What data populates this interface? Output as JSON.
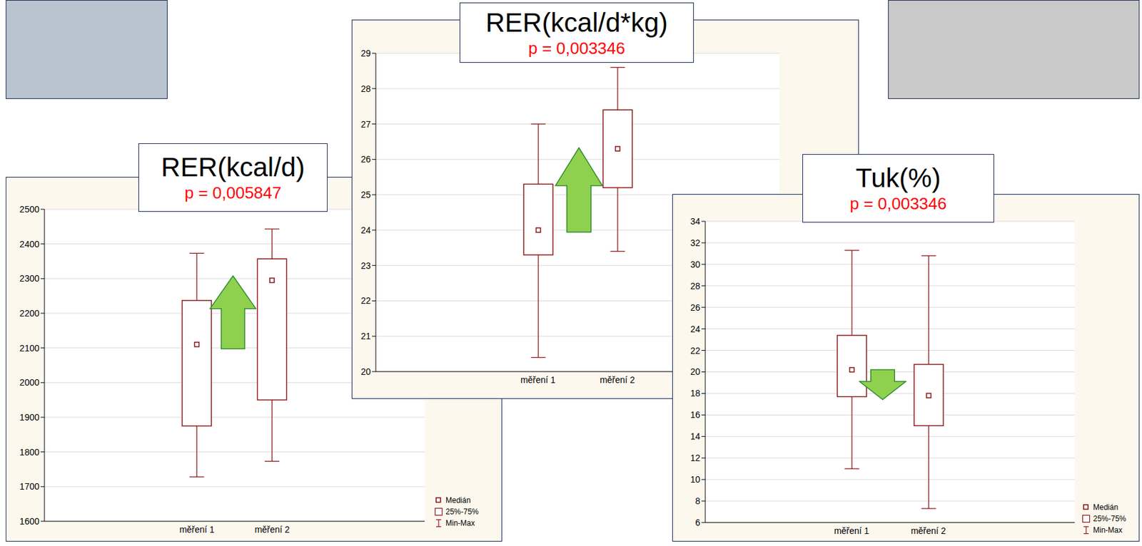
{
  "chart_data": [
    {
      "type": "box",
      "title": "RER(kcal/d)",
      "subtitle": "p = 0,005847",
      "categories": [
        "měření 1",
        "měření 2"
      ],
      "boxes": [
        {
          "min": 1728,
          "q1": 1875,
          "median": 2110,
          "q3": 2237,
          "max": 2373
        },
        {
          "min": 1773,
          "q1": 1950,
          "median": 2295,
          "q3": 2357,
          "max": 2443
        }
      ],
      "color": "#8b1a1a",
      "ylim": [
        1600,
        2500
      ],
      "yticks": [
        1600,
        1700,
        1800,
        1900,
        2000,
        2100,
        2200,
        2300,
        2400,
        2500
      ],
      "grid": true,
      "legend": "lower right",
      "legend_entries": [
        "Medián",
        "25%-75%",
        "Min-Max"
      ]
    },
    {
      "type": "box",
      "title": "RER(kcal/d*kg)",
      "subtitle": "p = 0,003346",
      "categories": [
        "měření 1",
        "měření 2"
      ],
      "boxes": [
        {
          "min": 20.4,
          "q1": 23.3,
          "median": 24.0,
          "q3": 25.3,
          "max": 27.0
        },
        {
          "min": 23.4,
          "q1": 25.2,
          "median": 26.3,
          "q3": 27.4,
          "max": 28.6
        }
      ],
      "color": "#8b1a1a",
      "ylim": [
        20,
        29
      ],
      "yticks": [
        20,
        21,
        22,
        23,
        24,
        25,
        26,
        27,
        28,
        29
      ],
      "grid": true
    },
    {
      "type": "box",
      "title": "Tuk(%)",
      "subtitle": "p = 0,003346",
      "categories": [
        "měření 1",
        "měření 2"
      ],
      "boxes": [
        {
          "min": 11.0,
          "q1": 17.7,
          "median": 20.2,
          "q3": 23.4,
          "max": 31.3
        },
        {
          "min": 7.3,
          "q1": 15.0,
          "median": 17.8,
          "q3": 20.7,
          "max": 30.8
        }
      ],
      "color": "#8b1a1a",
      "ylim": [
        6,
        34
      ],
      "yticks": [
        6,
        8,
        10,
        12,
        14,
        16,
        18,
        20,
        22,
        24,
        26,
        28,
        30,
        32,
        34
      ],
      "grid": true,
      "legend": "lower right",
      "legend_entries": [
        "Medián",
        "25%-75%",
        "Min-Max"
      ]
    }
  ]
}
